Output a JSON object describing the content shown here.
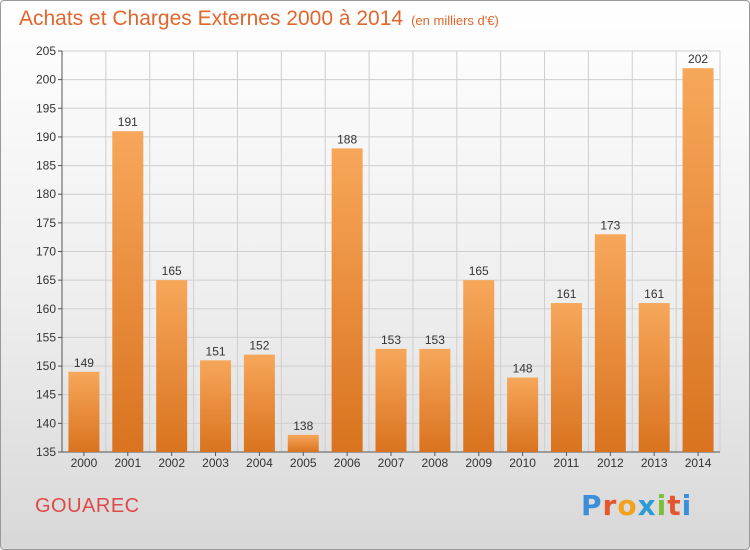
{
  "header": {
    "title": "Achats et Charges Externes 2000 à 2014",
    "unit": "(en milliers d'€)"
  },
  "footer": {
    "commune": "GOUAREC",
    "logo": "Proxiti"
  },
  "colors": {
    "title": "#e2662c",
    "commune": "#e04a4a",
    "bar_light": "#f7a75a",
    "bar_dark": "#d9731f",
    "grid": "#cfcfcf"
  },
  "chart_data": {
    "type": "bar",
    "title": "Achats et Charges Externes 2000 à 2014",
    "subtitle": "(en milliers d'€)",
    "xlabel": "",
    "ylabel": "",
    "categories": [
      "2000",
      "2001",
      "2002",
      "2003",
      "2004",
      "2005",
      "2006",
      "2007",
      "2008",
      "2009",
      "2010",
      "2011",
      "2012",
      "2013",
      "2014"
    ],
    "values": [
      149,
      191,
      165,
      151,
      152,
      138,
      188,
      153,
      153,
      165,
      148,
      161,
      173,
      161,
      202
    ],
    "ylim": [
      135,
      205
    ],
    "yticks": [
      135,
      140,
      145,
      150,
      155,
      160,
      165,
      170,
      175,
      180,
      185,
      190,
      195,
      200,
      205
    ],
    "grid": true,
    "data_labels": true
  }
}
